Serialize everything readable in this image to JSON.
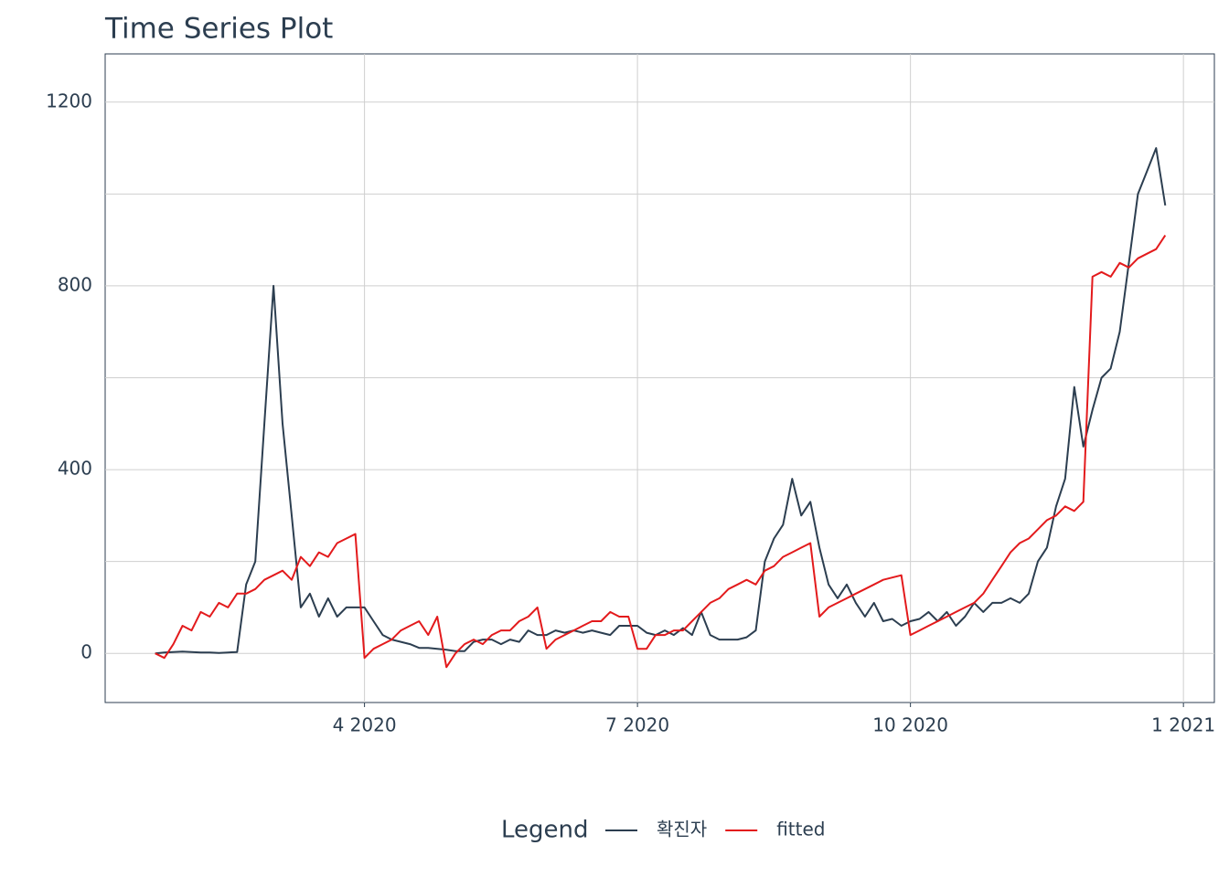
{
  "chart_data": {
    "type": "line",
    "title": "Time Series Plot",
    "x": [
      1.7,
      1.8,
      1.9,
      2.0,
      2.1,
      2.2,
      2.3,
      2.4,
      2.5,
      2.6,
      2.7,
      2.8,
      2.9,
      3.0,
      3.1,
      3.2,
      3.3,
      3.4,
      3.5,
      3.6,
      3.7,
      3.8,
      3.9,
      4.0,
      4.1,
      4.2,
      4.3,
      4.4,
      4.5,
      4.6,
      4.7,
      4.8,
      4.9,
      5.0,
      5.1,
      5.2,
      5.3,
      5.4,
      5.5,
      5.6,
      5.7,
      5.8,
      5.9,
      6.0,
      6.1,
      6.2,
      6.3,
      6.4,
      6.5,
      6.6,
      6.7,
      6.8,
      6.9,
      7.0,
      7.1,
      7.2,
      7.3,
      7.4,
      7.5,
      7.6,
      7.7,
      7.8,
      7.9,
      8.0,
      8.1,
      8.2,
      8.3,
      8.4,
      8.5,
      8.6,
      8.7,
      8.8,
      8.9,
      9.0,
      9.1,
      9.2,
      9.3,
      9.4,
      9.5,
      9.6,
      9.7,
      9.8,
      9.9,
      10.0,
      10.1,
      10.2,
      10.3,
      10.4,
      10.5,
      10.6,
      10.7,
      10.8,
      10.9,
      11.0,
      11.1,
      11.2,
      11.3,
      11.4,
      11.5,
      11.6,
      11.7,
      11.8,
      11.9,
      12.0,
      12.1,
      12.2,
      12.3,
      12.4,
      12.5,
      12.6,
      12.7,
      12.8
    ],
    "series": [
      {
        "name": "확진자",
        "color": "#2c3e50",
        "values": [
          0,
          2,
          3,
          4,
          3,
          2,
          2,
          1,
          2,
          3,
          150,
          200,
          500,
          800,
          500,
          300,
          100,
          130,
          80,
          120,
          80,
          100,
          100,
          100,
          70,
          40,
          30,
          25,
          20,
          12,
          12,
          10,
          8,
          5,
          5,
          25,
          30,
          30,
          20,
          30,
          25,
          50,
          40,
          40,
          50,
          45,
          50,
          45,
          50,
          45,
          40,
          60,
          60,
          60,
          45,
          40,
          50,
          40,
          55,
          40,
          90,
          40,
          30,
          30,
          30,
          35,
          50,
          200,
          250,
          280,
          380,
          300,
          330,
          230,
          150,
          120,
          150,
          110,
          80,
          110,
          70,
          75,
          60,
          70,
          75,
          90,
          70,
          90,
          60,
          80,
          110,
          90,
          110,
          110,
          120,
          110,
          130,
          200,
          230,
          320,
          380,
          580,
          450,
          530,
          600,
          620,
          700,
          850,
          1000,
          1050,
          1100,
          975
        ]
      },
      {
        "name": "fitted",
        "color": "#e31a1c",
        "values": [
          0,
          -10,
          20,
          60,
          50,
          90,
          80,
          110,
          100,
          130,
          130,
          140,
          160,
          170,
          180,
          160,
          210,
          190,
          220,
          210,
          240,
          250,
          260,
          -10,
          10,
          20,
          30,
          50,
          60,
          70,
          40,
          80,
          -30,
          0,
          20,
          30,
          20,
          40,
          50,
          50,
          70,
          80,
          100,
          10,
          30,
          40,
          50,
          60,
          70,
          70,
          90,
          80,
          80,
          10,
          10,
          40,
          40,
          50,
          50,
          70,
          90,
          110,
          120,
          140,
          150,
          160,
          150,
          180,
          190,
          210,
          220,
          230,
          240,
          80,
          100,
          110,
          120,
          130,
          140,
          150,
          160,
          165,
          170,
          40,
          50,
          60,
          70,
          80,
          90,
          100,
          110,
          130,
          160,
          190,
          220,
          240,
          250,
          270,
          290,
          300,
          320,
          310,
          330,
          820,
          830,
          820,
          850,
          840,
          860,
          870,
          880,
          910
        ]
      }
    ],
    "xlim": [
      1.15,
      13.34
    ],
    "xticks": [
      {
        "value": 4,
        "label": "4 2020"
      },
      {
        "value": 7,
        "label": "7 2020"
      },
      {
        "value": 10,
        "label": "10 2020"
      },
      {
        "value": 13,
        "label": "1 2021"
      }
    ],
    "ylim": [
      -107,
      1305
    ],
    "yticks": [
      0,
      400,
      800,
      1200
    ],
    "minor_yticks": [
      200,
      600,
      1000
    ],
    "grid": true,
    "legend_title": "Legend",
    "legend_position": "bottom"
  }
}
